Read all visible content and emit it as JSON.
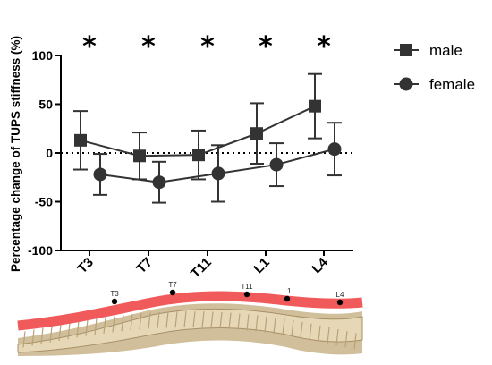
{
  "chart_data": {
    "type": "line",
    "categories": [
      "T3",
      "T7",
      "T11",
      "L1",
      "L4"
    ],
    "ylabel": "Percentage change of TUPS stiffness (%)",
    "ylim": [
      -100,
      100
    ],
    "yticks": [
      "-100",
      "-50",
      "0",
      "50",
      "100"
    ],
    "reference_line": 0,
    "annotations": [
      "*",
      "*",
      "*",
      "*",
      "*"
    ],
    "series": [
      {
        "name": "male",
        "marker": "square",
        "color": "#333333",
        "values": [
          13,
          -3,
          -2,
          20,
          48
        ],
        "error": [
          30,
          24,
          25,
          31,
          33
        ]
      },
      {
        "name": "female",
        "marker": "circle",
        "color": "#333333",
        "values": [
          -22,
          -30,
          -21,
          -12,
          4
        ],
        "error": [
          21,
          21,
          29,
          22,
          27
        ]
      }
    ],
    "legend_position": "top-right"
  },
  "figure": {
    "spine_labels": [
      "T3",
      "T7",
      "T11",
      "L1",
      "L4"
    ],
    "band_color": "#f05a5a"
  }
}
